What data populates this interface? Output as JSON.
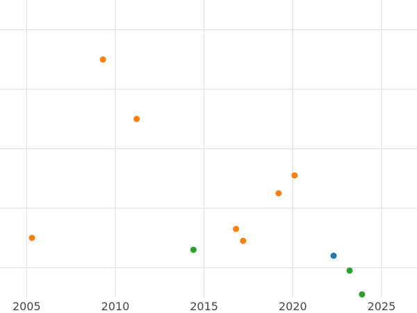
{
  "chart_data": {
    "type": "scatter",
    "title": "",
    "xlabel": "",
    "ylabel": "",
    "xlim": [
      2003.5,
      2027
    ],
    "ylim": [
      0,
      1
    ],
    "x_ticks": [
      2005,
      2010,
      2015,
      2020,
      2025
    ],
    "y_gridlines": [
      0.9,
      0.7,
      0.5,
      0.3,
      0.1
    ],
    "grid": true,
    "legend": "none",
    "series": [
      {
        "color": "#ff7f0e",
        "points": [
          {
            "x": 2005.3,
            "y": 0.2
          },
          {
            "x": 2009.3,
            "y": 0.8
          },
          {
            "x": 2011.2,
            "y": 0.6
          },
          {
            "x": 2016.8,
            "y": 0.23
          },
          {
            "x": 2017.2,
            "y": 0.19
          },
          {
            "x": 2019.2,
            "y": 0.35
          },
          {
            "x": 2020.1,
            "y": 0.41
          }
        ]
      },
      {
        "color": "#2ca02c",
        "points": [
          {
            "x": 2014.4,
            "y": 0.16
          },
          {
            "x": 2023.2,
            "y": 0.09
          },
          {
            "x": 2023.9,
            "y": 0.01
          }
        ]
      },
      {
        "color": "#1f77b4",
        "points": [
          {
            "x": 2022.3,
            "y": 0.14
          }
        ]
      }
    ]
  }
}
